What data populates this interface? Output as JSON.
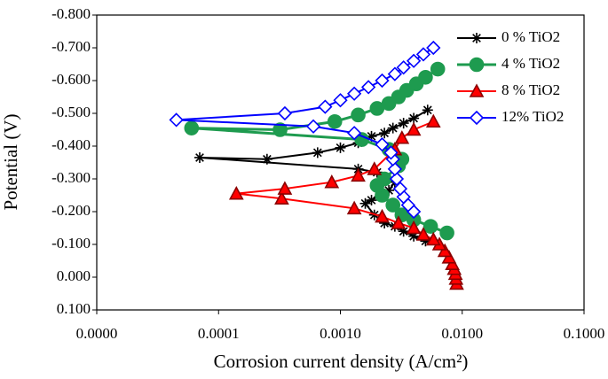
{
  "chart_data": {
    "type": "line",
    "x_label": "Corrosion current density (A/cm²)",
    "y_label": "Potential (V)",
    "x_log": true,
    "xlim": [
      1e-05,
      0.1
    ],
    "xticks": [
      {
        "value": 1e-05,
        "label": "0.0000"
      },
      {
        "value": 0.0001,
        "label": "0.0001"
      },
      {
        "value": 0.001,
        "label": "0.0010"
      },
      {
        "value": 0.01,
        "label": "0.0100"
      },
      {
        "value": 0.1,
        "label": "0.1000"
      }
    ],
    "ylim": [
      0.1,
      -0.8
    ],
    "yticks": [
      {
        "value": 0.1,
        "label": "0.100"
      },
      {
        "value": 0,
        "label": "0.000"
      },
      {
        "value": -0.1,
        "label": "-0.100"
      },
      {
        "value": -0.2,
        "label": "-0.200"
      },
      {
        "value": -0.3,
        "label": "-0.300"
      },
      {
        "value": -0.4,
        "label": "-0.400"
      },
      {
        "value": -0.5,
        "label": "-0.500"
      },
      {
        "value": -0.6,
        "label": "-0.600"
      },
      {
        "value": -0.7,
        "label": "-0.700"
      },
      {
        "value": -0.8,
        "label": "-0.800"
      }
    ],
    "grid": false,
    "legend": "top-right",
    "series": [
      {
        "name": "0 % TiO2",
        "color": "#000000",
        "marker": "asterisk",
        "x": [
          0.005,
          0.004,
          0.0033,
          0.0028,
          0.0023,
          0.0019,
          0.0016,
          0.0018,
          0.0025,
          0.0028,
          0.002,
          0.0014,
          7e-05,
          0.00025,
          0.00065,
          0.001,
          0.0014,
          0.0018,
          0.0023,
          0.0027,
          0.0033,
          0.004,
          0.0052
        ],
        "values": [
          -0.11,
          -0.125,
          -0.14,
          -0.155,
          -0.165,
          -0.19,
          -0.225,
          -0.235,
          -0.265,
          -0.29,
          -0.32,
          -0.33,
          -0.365,
          -0.36,
          -0.38,
          -0.395,
          -0.41,
          -0.43,
          -0.44,
          -0.455,
          -0.47,
          -0.485,
          -0.51
        ]
      },
      {
        "name": "4 % TiO2",
        "color": "#1e9b4f",
        "marker": "circle",
        "x": [
          0.0075,
          0.0055,
          0.004,
          0.0032,
          0.0027,
          0.0022,
          0.002,
          0.0023,
          0.003,
          0.0032,
          0.0025,
          0.0015,
          6e-05,
          0.00032,
          0.0009,
          0.0014,
          0.002,
          0.0025,
          0.003,
          0.0035,
          0.0042,
          0.005,
          0.0063
        ],
        "values": [
          -0.135,
          -0.155,
          -0.175,
          -0.19,
          -0.22,
          -0.25,
          -0.28,
          -0.3,
          -0.34,
          -0.36,
          -0.39,
          -0.42,
          -0.455,
          -0.45,
          -0.475,
          -0.495,
          -0.515,
          -0.53,
          -0.55,
          -0.57,
          -0.59,
          -0.61,
          -0.635
        ]
      },
      {
        "name": "8 % TiO2",
        "color": "#ff0000",
        "marker": "triangle",
        "x": [
          0.009,
          0.0089,
          0.0088,
          0.0086,
          0.0083,
          0.0078,
          0.0072,
          0.0065,
          0.0058,
          0.0048,
          0.004,
          0.003,
          0.0022,
          0.0013,
          0.00033,
          0.00014,
          0.00035,
          0.00085,
          0.0014,
          0.0019,
          0.0028,
          0.0032,
          0.004,
          0.0058
        ],
        "values": [
          0.02,
          0.005,
          -0.01,
          -0.025,
          -0.04,
          -0.06,
          -0.08,
          -0.1,
          -0.115,
          -0.13,
          -0.15,
          -0.165,
          -0.185,
          -0.21,
          -0.24,
          -0.255,
          -0.27,
          -0.29,
          -0.31,
          -0.33,
          -0.39,
          -0.425,
          -0.45,
          -0.475
        ]
      },
      {
        "name": "12% TiO2",
        "color": "#0000ff",
        "marker": "diamond",
        "x": [
          0.004,
          0.0036,
          0.0033,
          0.0031,
          0.0029,
          0.0028,
          0.0027,
          0.0026,
          0.0022,
          0.0013,
          0.0006,
          4.5e-05,
          0.00035,
          0.00075,
          0.001,
          0.0013,
          0.0017,
          0.0022,
          0.0028,
          0.0033,
          0.004,
          0.0048,
          0.0058
        ],
        "values": [
          -0.2,
          -0.22,
          -0.245,
          -0.27,
          -0.3,
          -0.33,
          -0.36,
          -0.38,
          -0.405,
          -0.44,
          -0.46,
          -0.48,
          -0.5,
          -0.52,
          -0.54,
          -0.56,
          -0.58,
          -0.6,
          -0.62,
          -0.64,
          -0.66,
          -0.68,
          -0.7
        ]
      }
    ]
  }
}
